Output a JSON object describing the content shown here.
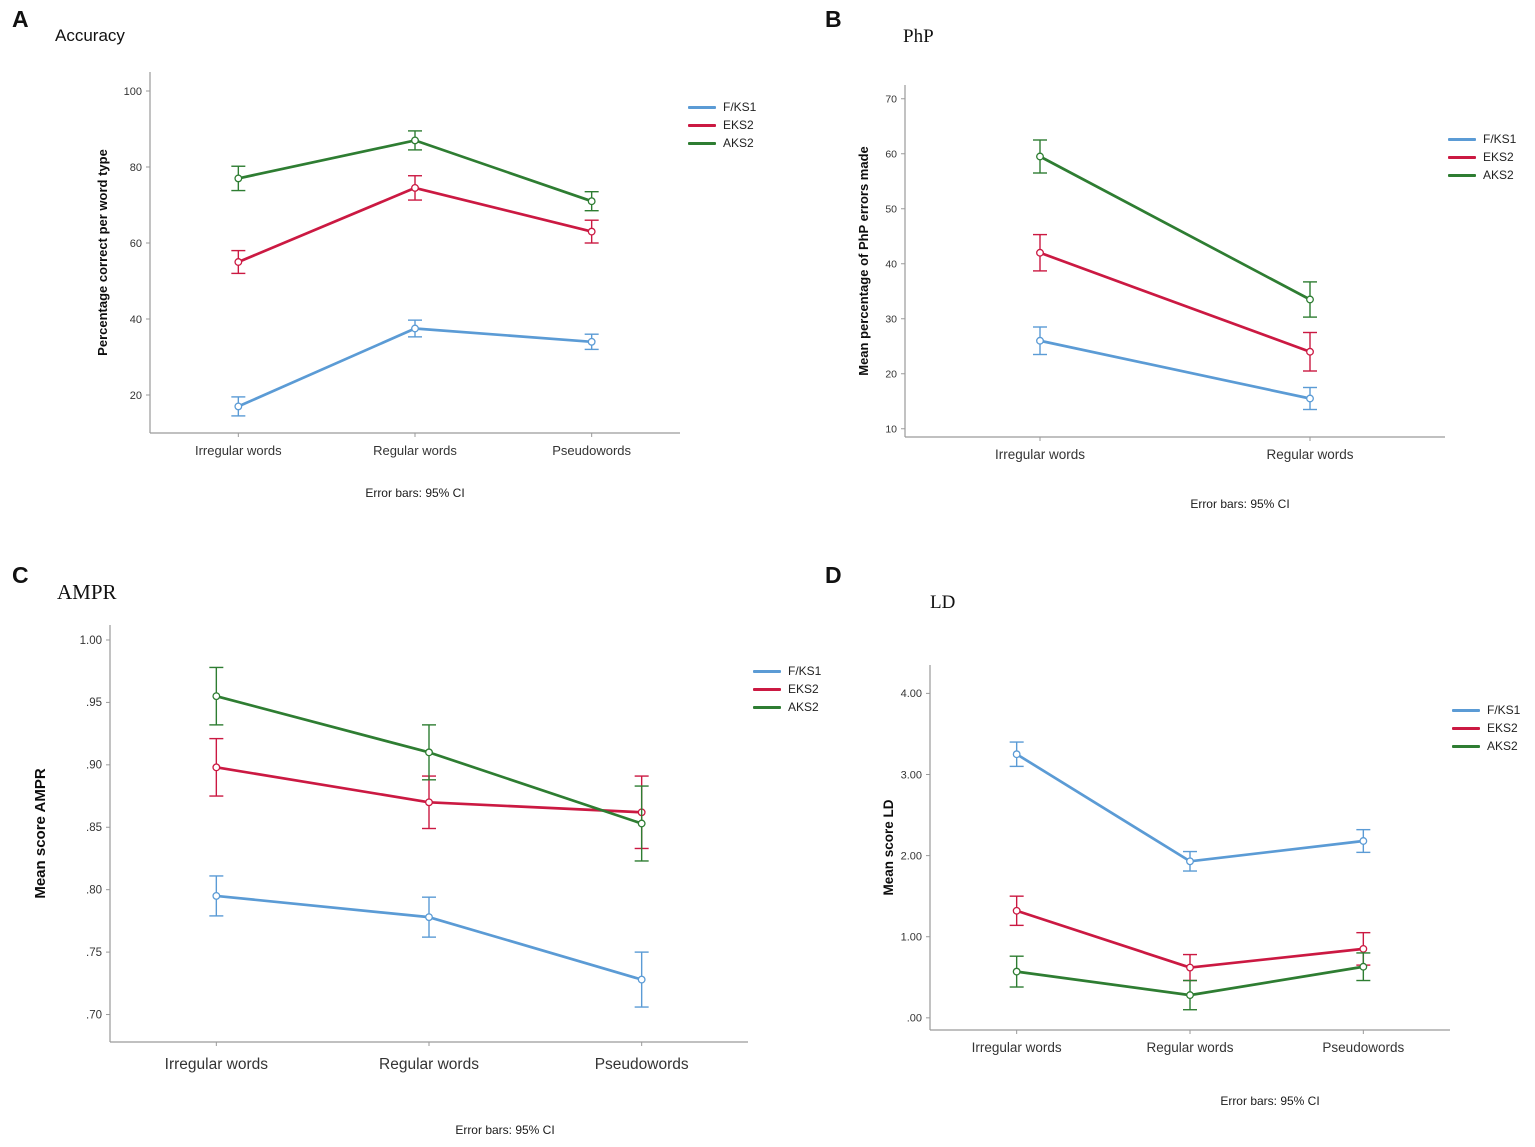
{
  "figure": {
    "legend_labels": [
      "F/KS1",
      "EKS2",
      "AKS2"
    ],
    "colors": {
      "fks1": "#5b9bd5",
      "eks2": "#cb1942",
      "aks2": "#2e7d32"
    },
    "caption": "Error bars: 95% CI"
  },
  "chart_data": [
    {
      "id": "A",
      "panel_label": "A",
      "title": "Accuracy",
      "type": "line",
      "ylabel": "Percentage correct per word type",
      "categories": [
        "Irregular words",
        "Regular words",
        "Pseudowords"
      ],
      "ylim": [
        10,
        105
      ],
      "yticks": [
        20,
        40,
        60,
        80,
        100
      ],
      "ytick_labels": [
        "20",
        "40",
        "60",
        "80",
        "100"
      ],
      "legend_position": "right",
      "grid": false,
      "series": [
        {
          "name": "F/KS1",
          "color": "#5b9bd5",
          "values": [
            17,
            37.5,
            34
          ],
          "ci95": [
            2.5,
            2.2,
            2.0
          ]
        },
        {
          "name": "EKS2",
          "color": "#cb1942",
          "values": [
            55,
            74.5,
            63
          ],
          "ci95": [
            3.0,
            3.2,
            3.0
          ]
        },
        {
          "name": "AKS2",
          "color": "#2e7d32",
          "values": [
            77,
            87,
            71
          ],
          "ci95": [
            3.2,
            2.5,
            2.5
          ]
        }
      ],
      "caption": "Error bars: 95% CI"
    },
    {
      "id": "B",
      "panel_label": "B",
      "title": "PhP",
      "type": "line",
      "ylabel": "Mean percentage of PhP errors made",
      "categories": [
        "Irregular words",
        "Regular words"
      ],
      "ylim": [
        8.5,
        72.5
      ],
      "yticks": [
        10,
        20,
        30,
        40,
        50,
        60,
        70
      ],
      "ytick_labels": [
        "10",
        "20",
        "30",
        "40",
        "50",
        "60",
        "70"
      ],
      "legend_position": "right",
      "grid": false,
      "series": [
        {
          "name": "F/KS1",
          "color": "#5b9bd5",
          "values": [
            26,
            15.5
          ],
          "ci95": [
            2.5,
            2.0
          ]
        },
        {
          "name": "EKS2",
          "color": "#cb1942",
          "values": [
            42,
            24
          ],
          "ci95": [
            3.3,
            3.5
          ]
        },
        {
          "name": "AKS2",
          "color": "#2e7d32",
          "values": [
            59.5,
            33.5
          ],
          "ci95": [
            3.0,
            3.2
          ]
        }
      ],
      "caption": "Error bars: 95% CI"
    },
    {
      "id": "C",
      "panel_label": "C",
      "title": "AMPR",
      "type": "line",
      "ylabel": "Mean score AMPR",
      "categories": [
        "Irregular words",
        "Regular words",
        "Pseudowords"
      ],
      "ylim": [
        0.678,
        1.012
      ],
      "yticks": [
        0.7,
        0.75,
        0.8,
        0.85,
        0.9,
        0.95,
        1.0
      ],
      "ytick_labels": [
        ".70",
        ".75",
        ".80",
        ".85",
        ".90",
        ".95",
        "1.00"
      ],
      "legend_position": "right",
      "grid": false,
      "series": [
        {
          "name": "F/KS1",
          "color": "#5b9bd5",
          "values": [
            0.795,
            0.778,
            0.728
          ],
          "ci95": [
            0.016,
            0.016,
            0.022
          ]
        },
        {
          "name": "EKS2",
          "color": "#cb1942",
          "values": [
            0.898,
            0.87,
            0.862
          ],
          "ci95": [
            0.023,
            0.021,
            0.029
          ]
        },
        {
          "name": "AKS2",
          "color": "#2e7d32",
          "values": [
            0.955,
            0.91,
            0.853
          ],
          "ci95": [
            0.023,
            0.022,
            0.03
          ]
        }
      ],
      "caption": "Error bars: 95% CI"
    },
    {
      "id": "D",
      "panel_label": "D",
      "title": "LD",
      "type": "line",
      "ylabel": "Mean score LD",
      "categories": [
        "Irregular words",
        "Regular words",
        "Pseudowords"
      ],
      "ylim": [
        -0.15,
        4.35
      ],
      "yticks": [
        0,
        1,
        2,
        3,
        4
      ],
      "ytick_labels": [
        ".00",
        "1.00",
        "2.00",
        "3.00",
        "4.00"
      ],
      "legend_position": "right",
      "grid": false,
      "series": [
        {
          "name": "F/KS1",
          "color": "#5b9bd5",
          "values": [
            3.25,
            1.93,
            2.18
          ],
          "ci95": [
            0.15,
            0.12,
            0.14
          ]
        },
        {
          "name": "EKS2",
          "color": "#cb1942",
          "values": [
            1.32,
            0.62,
            0.85
          ],
          "ci95": [
            0.18,
            0.16,
            0.2
          ]
        },
        {
          "name": "AKS2",
          "color": "#2e7d32",
          "values": [
            0.57,
            0.28,
            0.63
          ],
          "ci95": [
            0.19,
            0.18,
            0.17
          ]
        }
      ],
      "caption": "Error bars: 95% CI"
    }
  ]
}
